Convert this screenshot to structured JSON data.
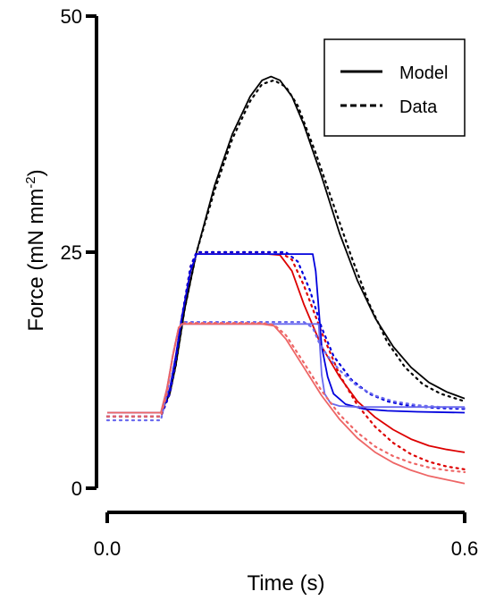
{
  "chart_data": {
    "type": "line",
    "xlabel": "Time (s)",
    "ylabel_main": "Force (mN mm",
    "ylabel_sup": "-2",
    "ylabel_close": ")",
    "xlim": [
      0.0,
      0.6
    ],
    "ylim": [
      0,
      50
    ],
    "x_ticks": [
      0.0,
      0.6
    ],
    "x_tick_labels": [
      "0.0",
      "0.6"
    ],
    "y_ticks": [
      0,
      25,
      50
    ],
    "y_tick_labels": [
      "0",
      "25",
      "50"
    ],
    "grid": false,
    "legend": {
      "position": "top-right",
      "entries": [
        {
          "label": "Model",
          "style": "solid"
        },
        {
          "label": "Data",
          "style": "dotted"
        }
      ]
    },
    "series": [
      {
        "group": "black",
        "color": "#000000",
        "style": "solid",
        "points": [
          [
            0.0,
            8.0
          ],
          [
            0.09,
            8.0
          ],
          [
            0.105,
            10.0
          ],
          [
            0.115,
            13.0
          ],
          [
            0.13,
            19.0
          ],
          [
            0.15,
            25.0
          ],
          [
            0.18,
            32.0
          ],
          [
            0.21,
            37.5
          ],
          [
            0.24,
            41.5
          ],
          [
            0.26,
            43.2
          ],
          [
            0.275,
            43.6
          ],
          [
            0.29,
            43.2
          ],
          [
            0.31,
            41.5
          ],
          [
            0.33,
            38.5
          ],
          [
            0.36,
            33.0
          ],
          [
            0.39,
            27.0
          ],
          [
            0.42,
            22.0
          ],
          [
            0.45,
            18.0
          ],
          [
            0.48,
            15.0
          ],
          [
            0.51,
            12.8
          ],
          [
            0.54,
            11.2
          ],
          [
            0.57,
            10.2
          ],
          [
            0.6,
            9.5
          ]
        ]
      },
      {
        "group": "black",
        "color": "#000000",
        "style": "dotted",
        "points": [
          [
            0.0,
            7.6
          ],
          [
            0.09,
            7.6
          ],
          [
            0.105,
            10.0
          ],
          [
            0.115,
            13.0
          ],
          [
            0.13,
            19.0
          ],
          [
            0.15,
            25.0
          ],
          [
            0.18,
            31.5
          ],
          [
            0.21,
            37.0
          ],
          [
            0.24,
            41.0
          ],
          [
            0.26,
            42.8
          ],
          [
            0.28,
            43.2
          ],
          [
            0.3,
            42.5
          ],
          [
            0.32,
            40.5
          ],
          [
            0.35,
            35.5
          ],
          [
            0.38,
            30.0
          ],
          [
            0.41,
            24.5
          ],
          [
            0.44,
            19.5
          ],
          [
            0.47,
            15.5
          ],
          [
            0.5,
            12.8
          ],
          [
            0.53,
            11.0
          ],
          [
            0.56,
            10.0
          ],
          [
            0.6,
            9.2
          ]
        ]
      },
      {
        "group": "red",
        "color": "#dd0000",
        "style": "solid",
        "points": [
          [
            0.0,
            8.0
          ],
          [
            0.09,
            8.0
          ],
          [
            0.105,
            10.5
          ],
          [
            0.115,
            14.0
          ],
          [
            0.125,
            18.0
          ],
          [
            0.14,
            23.0
          ],
          [
            0.15,
            24.8
          ],
          [
            0.27,
            24.8
          ],
          [
            0.29,
            24.7
          ],
          [
            0.31,
            23.0
          ],
          [
            0.33,
            19.5
          ],
          [
            0.36,
            15.0
          ],
          [
            0.39,
            11.8
          ],
          [
            0.42,
            9.2
          ],
          [
            0.45,
            7.5
          ],
          [
            0.48,
            6.2
          ],
          [
            0.51,
            5.2
          ],
          [
            0.54,
            4.5
          ],
          [
            0.57,
            4.1
          ],
          [
            0.6,
            3.8
          ]
        ]
      },
      {
        "group": "red",
        "color": "#dd0000",
        "style": "dotted",
        "points": [
          [
            0.0,
            7.6
          ],
          [
            0.09,
            7.6
          ],
          [
            0.105,
            10.0
          ],
          [
            0.115,
            13.5
          ],
          [
            0.125,
            18.0
          ],
          [
            0.14,
            23.5
          ],
          [
            0.15,
            25.0
          ],
          [
            0.27,
            25.0
          ],
          [
            0.29,
            25.0
          ],
          [
            0.31,
            24.2
          ],
          [
            0.33,
            21.5
          ],
          [
            0.36,
            16.5
          ],
          [
            0.39,
            12.0
          ],
          [
            0.42,
            8.8
          ],
          [
            0.45,
            6.5
          ],
          [
            0.48,
            4.8
          ],
          [
            0.51,
            3.6
          ],
          [
            0.54,
            2.8
          ],
          [
            0.57,
            2.3
          ],
          [
            0.6,
            2.0
          ]
        ]
      },
      {
        "group": "blue",
        "color": "#0000dd",
        "style": "solid",
        "points": [
          [
            0.0,
            8.0
          ],
          [
            0.09,
            8.0
          ],
          [
            0.105,
            10.5
          ],
          [
            0.115,
            14.0
          ],
          [
            0.125,
            18.0
          ],
          [
            0.14,
            23.0
          ],
          [
            0.15,
            24.8
          ],
          [
            0.345,
            24.8
          ],
          [
            0.35,
            23.0
          ],
          [
            0.355,
            19.0
          ],
          [
            0.36,
            15.0
          ],
          [
            0.37,
            11.8
          ],
          [
            0.38,
            10.0
          ],
          [
            0.4,
            8.9
          ],
          [
            0.43,
            8.4
          ],
          [
            0.47,
            8.2
          ],
          [
            0.52,
            8.1
          ],
          [
            0.6,
            8.0
          ]
        ]
      },
      {
        "group": "blue",
        "color": "#0000dd",
        "style": "dotted",
        "points": [
          [
            0.0,
            7.6
          ],
          [
            0.09,
            7.6
          ],
          [
            0.105,
            10.0
          ],
          [
            0.115,
            13.5
          ],
          [
            0.125,
            18.0
          ],
          [
            0.14,
            23.5
          ],
          [
            0.15,
            25.0
          ],
          [
            0.3,
            25.0
          ],
          [
            0.32,
            24.0
          ],
          [
            0.34,
            21.0
          ],
          [
            0.36,
            17.0
          ],
          [
            0.38,
            14.0
          ],
          [
            0.41,
            11.5
          ],
          [
            0.44,
            10.0
          ],
          [
            0.47,
            9.2
          ],
          [
            0.5,
            8.8
          ],
          [
            0.55,
            8.5
          ],
          [
            0.6,
            8.4
          ]
        ]
      },
      {
        "group": "light-blue",
        "color": "#6a6aee",
        "style": "solid",
        "points": [
          [
            0.0,
            8.0
          ],
          [
            0.09,
            8.0
          ],
          [
            0.1,
            10.5
          ],
          [
            0.11,
            14.0
          ],
          [
            0.12,
            17.0
          ],
          [
            0.125,
            17.4
          ],
          [
            0.355,
            17.4
          ],
          [
            0.357,
            15.0
          ],
          [
            0.36,
            12.0
          ],
          [
            0.365,
            10.0
          ],
          [
            0.375,
            9.0
          ],
          [
            0.39,
            8.7
          ],
          [
            0.42,
            8.6
          ],
          [
            0.5,
            8.6
          ],
          [
            0.6,
            8.6
          ]
        ]
      },
      {
        "group": "light-blue",
        "color": "#6a6aee",
        "style": "dotted",
        "points": [
          [
            0.0,
            7.2
          ],
          [
            0.09,
            7.2
          ],
          [
            0.1,
            10.0
          ],
          [
            0.11,
            14.0
          ],
          [
            0.12,
            17.0
          ],
          [
            0.13,
            17.6
          ],
          [
            0.33,
            17.6
          ],
          [
            0.345,
            17.0
          ],
          [
            0.355,
            15.5
          ],
          [
            0.37,
            14.0
          ],
          [
            0.39,
            12.5
          ],
          [
            0.42,
            10.8
          ],
          [
            0.45,
            9.8
          ],
          [
            0.48,
            9.2
          ],
          [
            0.52,
            8.8
          ],
          [
            0.56,
            8.6
          ],
          [
            0.6,
            8.5
          ]
        ]
      },
      {
        "group": "light-red",
        "color": "#ee6666",
        "style": "solid",
        "points": [
          [
            0.0,
            8.0
          ],
          [
            0.09,
            8.0
          ],
          [
            0.1,
            10.5
          ],
          [
            0.11,
            14.0
          ],
          [
            0.12,
            17.0
          ],
          [
            0.125,
            17.4
          ],
          [
            0.26,
            17.4
          ],
          [
            0.28,
            17.2
          ],
          [
            0.3,
            15.8
          ],
          [
            0.33,
            12.8
          ],
          [
            0.36,
            9.8
          ],
          [
            0.39,
            7.3
          ],
          [
            0.42,
            5.3
          ],
          [
            0.45,
            3.8
          ],
          [
            0.48,
            2.7
          ],
          [
            0.51,
            1.9
          ],
          [
            0.54,
            1.3
          ],
          [
            0.57,
            0.9
          ],
          [
            0.6,
            0.5
          ]
        ]
      },
      {
        "group": "light-red",
        "color": "#ee6666",
        "style": "dotted",
        "points": [
          [
            0.0,
            7.6
          ],
          [
            0.09,
            7.6
          ],
          [
            0.1,
            10.0
          ],
          [
            0.11,
            14.0
          ],
          [
            0.12,
            17.0
          ],
          [
            0.13,
            17.5
          ],
          [
            0.26,
            17.5
          ],
          [
            0.28,
            17.3
          ],
          [
            0.3,
            16.2
          ],
          [
            0.33,
            13.3
          ],
          [
            0.36,
            10.3
          ],
          [
            0.39,
            7.8
          ],
          [
            0.42,
            5.9
          ],
          [
            0.45,
            4.4
          ],
          [
            0.48,
            3.4
          ],
          [
            0.51,
            2.7
          ],
          [
            0.54,
            2.2
          ],
          [
            0.57,
            1.9
          ],
          [
            0.6,
            1.7
          ]
        ]
      }
    ]
  }
}
